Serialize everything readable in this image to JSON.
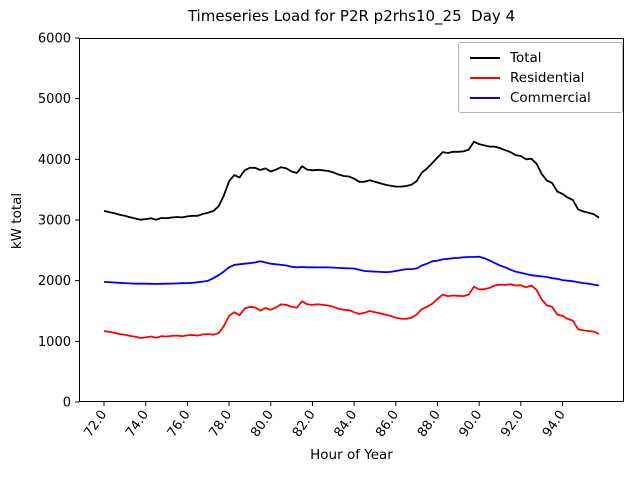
{
  "figure": {
    "background": "#ffffff"
  },
  "chart_data": {
    "type": "line",
    "title": "Timeseries Load for P2R p2rhs10_25  Day 4",
    "xlabel": "Hour of Year",
    "ylabel": "kW total",
    "xlim": [
      70.8,
      96.95
    ],
    "ylim": [
      0,
      6000
    ],
    "grid": false,
    "legend_position": "upper right",
    "x_tick_labels": [
      "72.0",
      "74.0",
      "76.0",
      "78.0",
      "80.0",
      "82.0",
      "84.0",
      "86.0",
      "88.0",
      "90.0",
      "92.0",
      "94.0"
    ],
    "x_ticks": [
      72,
      74,
      76,
      78,
      80,
      82,
      84,
      86,
      88,
      90,
      92,
      94
    ],
    "y_tick_labels": [
      "0",
      "1000",
      "2000",
      "3000",
      "4000",
      "5000",
      "6000"
    ],
    "y_ticks": [
      0,
      1000,
      2000,
      3000,
      4000,
      5000,
      6000
    ],
    "x_start": 72.0,
    "x_step": 0.25,
    "x_end": 95.75,
    "series": [
      {
        "name": "Total",
        "color": "#000000",
        "values": [
          3150,
          3130,
          3110,
          3085,
          3070,
          3045,
          3025,
          3005,
          3015,
          3028,
          3005,
          3033,
          3030,
          3042,
          3050,
          3043,
          3060,
          3070,
          3070,
          3100,
          3120,
          3150,
          3225,
          3400,
          3640,
          3740,
          3700,
          3820,
          3860,
          3860,
          3825,
          3850,
          3800,
          3830,
          3870,
          3850,
          3800,
          3775,
          3885,
          3830,
          3820,
          3828,
          3820,
          3808,
          3785,
          3750,
          3725,
          3717,
          3680,
          3630,
          3630,
          3655,
          3630,
          3605,
          3580,
          3565,
          3550,
          3550,
          3560,
          3580,
          3640,
          3780,
          3850,
          3940,
          4030,
          4120,
          4105,
          4125,
          4125,
          4130,
          4160,
          4290,
          4250,
          4230,
          4210,
          4210,
          4185,
          4150,
          4120,
          4070,
          4055,
          4000,
          4010,
          3930,
          3760,
          3650,
          3610,
          3470,
          3430,
          3370,
          3330,
          3175,
          3140,
          3120,
          3095,
          3040
        ]
      },
      {
        "name": "Residential",
        "color": "#ff0000",
        "values": [
          1170,
          1155,
          1140,
          1120,
          1110,
          1090,
          1075,
          1055,
          1065,
          1080,
          1060,
          1085,
          1080,
          1090,
          1095,
          1085,
          1100,
          1105,
          1095,
          1115,
          1120,
          1110,
          1135,
          1250,
          1420,
          1480,
          1430,
          1540,
          1570,
          1560,
          1505,
          1550,
          1520,
          1560,
          1610,
          1600,
          1570,
          1555,
          1660,
          1610,
          1600,
          1610,
          1600,
          1590,
          1570,
          1540,
          1520,
          1515,
          1480,
          1450,
          1470,
          1500,
          1480,
          1460,
          1440,
          1420,
          1390,
          1375,
          1370,
          1390,
          1440,
          1530,
          1570,
          1620,
          1700,
          1770,
          1745,
          1755,
          1750,
          1745,
          1770,
          1900,
          1855,
          1860,
          1880,
          1920,
          1935,
          1930,
          1940,
          1920,
          1925,
          1890,
          1920,
          1850,
          1690,
          1590,
          1570,
          1440,
          1420,
          1370,
          1340,
          1200,
          1180,
          1170,
          1160,
          1120
        ]
      },
      {
        "name": "Commercial",
        "color": "#0000ff",
        "values": [
          1980,
          1975,
          1970,
          1965,
          1960,
          1955,
          1950,
          1950,
          1950,
          1948,
          1945,
          1948,
          1950,
          1952,
          1955,
          1958,
          1960,
          1965,
          1975,
          1985,
          2000,
          2040,
          2090,
          2150,
          2220,
          2260,
          2270,
          2280,
          2290,
          2300,
          2320,
          2300,
          2280,
          2270,
          2260,
          2250,
          2230,
          2220,
          2225,
          2220,
          2220,
          2218,
          2220,
          2218,
          2215,
          2210,
          2205,
          2202,
          2200,
          2180,
          2160,
          2155,
          2150,
          2145,
          2140,
          2145,
          2160,
          2175,
          2190,
          2190,
          2200,
          2250,
          2280,
          2320,
          2330,
          2350,
          2360,
          2370,
          2375,
          2385,
          2390,
          2390,
          2395,
          2370,
          2330,
          2290,
          2250,
          2220,
          2180,
          2150,
          2130,
          2110,
          2090,
          2080,
          2070,
          2060,
          2040,
          2030,
          2010,
          2000,
          1990,
          1975,
          1960,
          1950,
          1935,
          1920
        ]
      }
    ]
  }
}
